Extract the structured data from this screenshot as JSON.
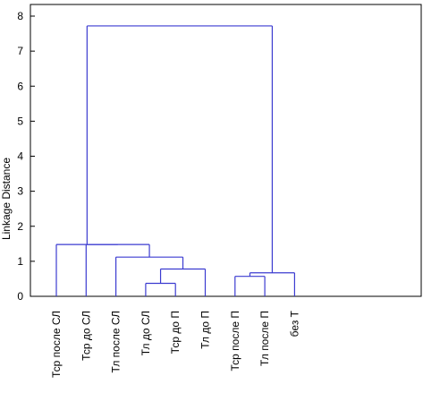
{
  "chart_data": {
    "type": "dendrogram",
    "ylabel": "Linkage Distance",
    "ylim": [
      0,
      8
    ],
    "yticks": [
      0,
      1,
      2,
      3,
      4,
      5,
      6,
      7,
      8
    ],
    "leaves": [
      "Тср после СЛ",
      "Тср до СЛ",
      "Тл после СЛ",
      "Тл до СЛ",
      "Тср до П",
      "Тл до П",
      "Тср после П",
      "Тл после П",
      "без Т"
    ],
    "links": [
      {
        "id": "n1",
        "children": [
          "Тл до СЛ",
          "Тср до П"
        ],
        "height": 0.37
      },
      {
        "id": "n2",
        "children": [
          "Тср после П",
          "Тл после П"
        ],
        "height": 0.57
      },
      {
        "id": "n3",
        "children": [
          "n2",
          "без Т"
        ],
        "height": 0.67
      },
      {
        "id": "n4",
        "children": [
          "n1",
          "Тл до П"
        ],
        "height": 0.78
      },
      {
        "id": "n5",
        "children": [
          "Тл после СЛ",
          "n4"
        ],
        "height": 1.12
      },
      {
        "id": "n6",
        "children": [
          "Тср до СЛ",
          "n5"
        ],
        "height": 1.48
      },
      {
        "id": "n7",
        "children": [
          "Тср после СЛ",
          "n6"
        ],
        "height": 1.48
      },
      {
        "id": "n8",
        "children": [
          "n7",
          "n3"
        ],
        "height": 7.72
      }
    ],
    "link_color": "#3b3bd0"
  }
}
